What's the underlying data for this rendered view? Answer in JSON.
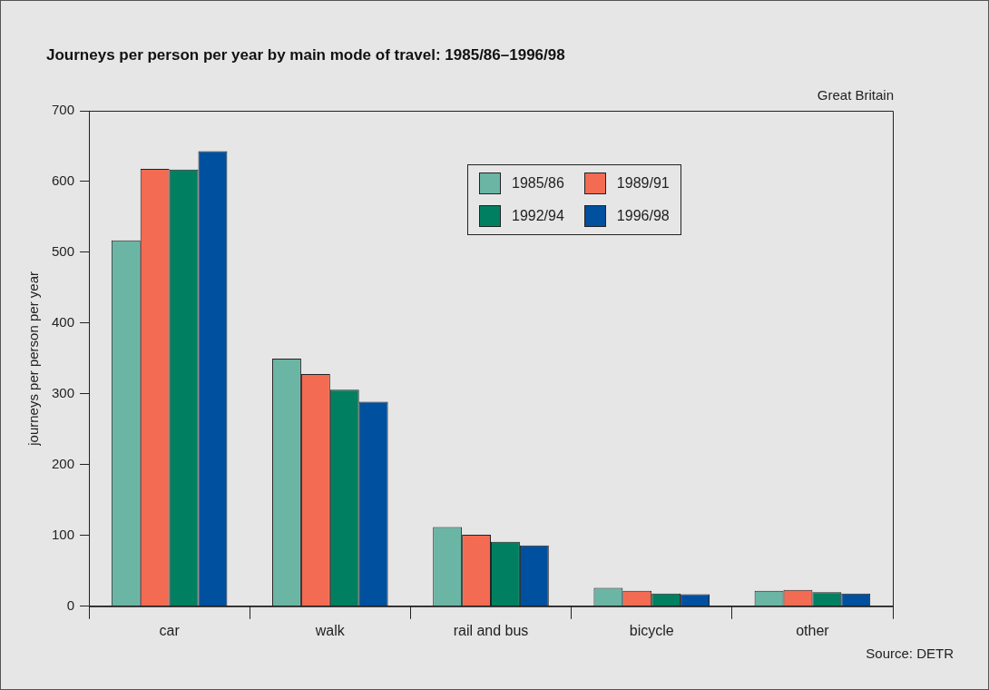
{
  "chart_data": {
    "type": "bar",
    "title": "Journeys per person per year by main mode of travel: 1985/86–1996/98",
    "ylabel": "journeys per person per year",
    "categories": [
      "car",
      "walk",
      "rail and bus",
      "bicycle",
      "other"
    ],
    "series": [
      {
        "name": "1985/86",
        "color": "#6bb5a5",
        "values": [
          517,
          350,
          112,
          26,
          22
        ]
      },
      {
        "name": "1989/91",
        "color": "#f26b52",
        "values": [
          618,
          328,
          101,
          22,
          23
        ]
      },
      {
        "name": "1992/94",
        "color": "#008060",
        "values": [
          617,
          306,
          91,
          18,
          20
        ]
      },
      {
        "name": "1996/98",
        "color": "#0050a0",
        "values": [
          643,
          289,
          86,
          17,
          18
        ]
      }
    ],
    "ylim": [
      0,
      700
    ],
    "yticks": [
      0,
      100,
      200,
      300,
      400,
      500,
      600,
      700
    ],
    "grid": false,
    "legend": "top right",
    "annotations": [
      "Great Britain",
      "Source: DETR"
    ]
  }
}
